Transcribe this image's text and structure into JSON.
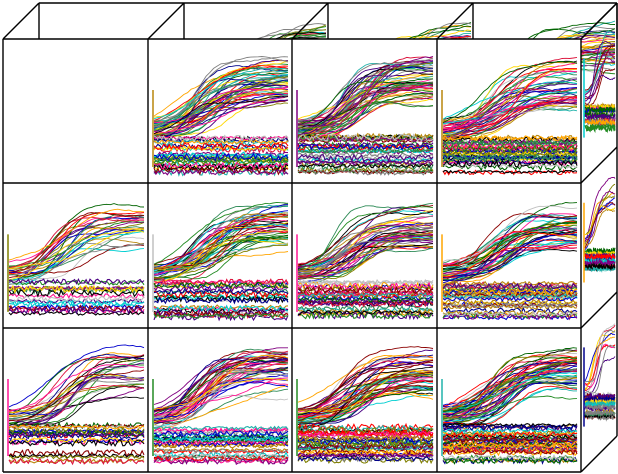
{
  "figure": {
    "kind": "3d-grid-of-multiline-plots",
    "rows": 3,
    "columns": 4,
    "depth_layers": 2,
    "empty_cells": [
      "row-1-col-1"
    ],
    "curve_colors": [
      "#8b0000",
      "#ff0000",
      "#00008b",
      "#0000cd",
      "#006400",
      "#228b22",
      "#808000",
      "#800080",
      "#ff1493",
      "#ffa500",
      "#20b2aa",
      "#00ced1",
      "#000000",
      "#808080",
      "#b8860b",
      "#4b0082",
      "#dc143c",
      "#2e8b57",
      "#ffd700",
      "#c0c0c0"
    ],
    "frame_color": "#000000",
    "background": "#ffffff"
  }
}
